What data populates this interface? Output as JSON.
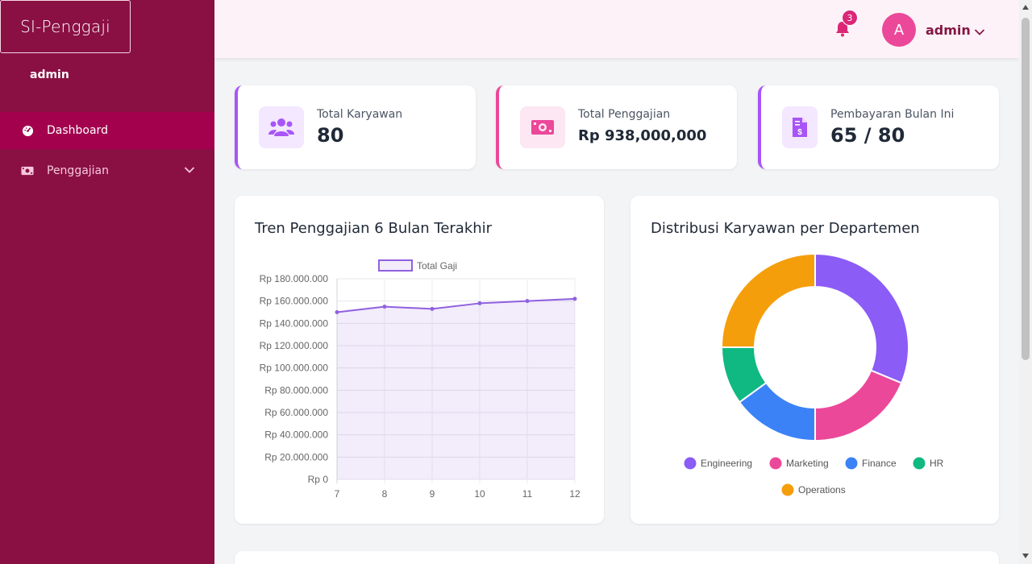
{
  "sidebar": {
    "brand": "SI-Penggaji",
    "user": "admin",
    "items": [
      {
        "label": "Dashboard",
        "icon": "speedometer-icon"
      },
      {
        "label": "Penggajian",
        "icon": "money-icon"
      }
    ]
  },
  "topbar": {
    "notification_count": "3",
    "avatar_initial": "A",
    "user_name": "admin"
  },
  "stats": [
    {
      "label": "Total Karyawan",
      "value": "80",
      "icon": "users-icon"
    },
    {
      "label": "Total Penggajian",
      "value": "Rp 938,000,000",
      "icon": "money-bill-icon"
    },
    {
      "label": "Pembayaran Bulan Ini",
      "value": "65 / 80",
      "icon": "invoice-dollar-icon"
    }
  ],
  "colors": {
    "sidebar_bg": "#8a1043",
    "active_item": "#a3004e",
    "line": "#9061e0",
    "engineering": "#8b5cf6",
    "marketing": "#ec4899",
    "finance": "#3b82f6",
    "hr": "#10b981",
    "operations": "#f59e0b"
  },
  "charts": {
    "trend_title": "Tren Penggajian 6 Bulan Terakhir",
    "dist_title": "Distribusi Karyawan per Departemen"
  },
  "chart_data": [
    {
      "type": "area",
      "title": "Tren Penggajian 6 Bulan Terakhir",
      "x": [
        "7",
        "8",
        "9",
        "10",
        "11",
        "12"
      ],
      "series": [
        {
          "name": "Total Gaji",
          "values": [
            150000000,
            155000000,
            153000000,
            158000000,
            160000000,
            162000000
          ]
        }
      ],
      "yticks": [
        "Rp 0",
        "Rp 20.000.000",
        "Rp 40.000.000",
        "Rp 60.000.000",
        "Rp 80.000.000",
        "Rp 100.000.000",
        "Rp 120.000.000",
        "Rp 140.000.000",
        "Rp 160.000.000",
        "Rp 180.000.000"
      ],
      "ylim": [
        0,
        180000000
      ],
      "legend": "top",
      "grid": true
    },
    {
      "type": "pie",
      "title": "Distribusi Karyawan per Departemen",
      "categories": [
        "Engineering",
        "Marketing",
        "Finance",
        "HR",
        "Operations"
      ],
      "values": [
        25,
        15,
        12,
        8,
        20
      ],
      "legend": "bottom"
    }
  ]
}
